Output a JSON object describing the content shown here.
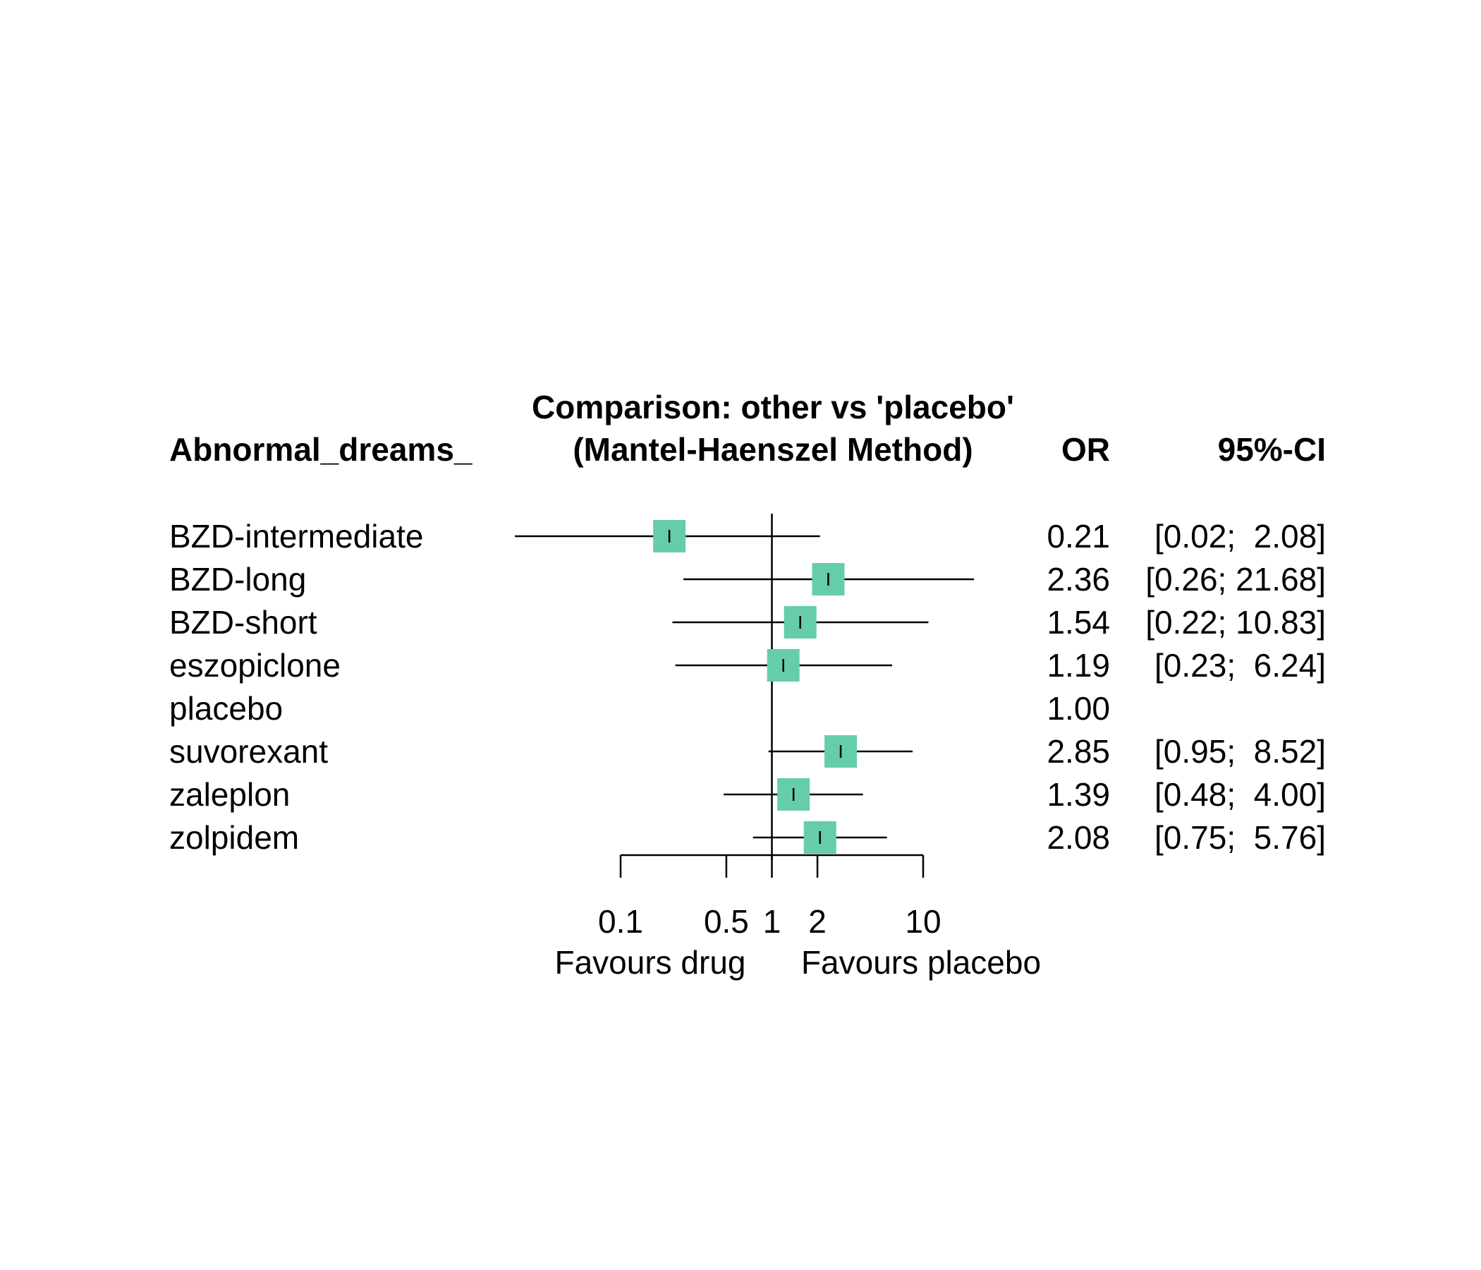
{
  "chart_data": {
    "type": "forest",
    "title": "Comparison: other vs 'placebo'",
    "subtitle": "(Mantel-Haenszel Method)",
    "outcome_label": "Abnormal_dreams_",
    "or_header": "OR",
    "ci_header": "95%-CI",
    "xscale": "log",
    "xlim": [
      0.1,
      10
    ],
    "ticks": [
      {
        "value": 0.1,
        "label": "0.1"
      },
      {
        "value": 0.5,
        "label": "0.5"
      },
      {
        "value": 1,
        "label": "1"
      },
      {
        "value": 2,
        "label": "2"
      },
      {
        "value": 10,
        "label": "10"
      }
    ],
    "left_favours": "Favours drug",
    "right_favours": "Favours placebo",
    "marker_color": "#66CDAA",
    "rows": [
      {
        "name": "BZD-intermediate",
        "or": 0.21,
        "lower": 0.02,
        "upper": 2.08,
        "or_text": "0.21",
        "ci_text": "[0.02;  2.08]"
      },
      {
        "name": "BZD-long",
        "or": 2.36,
        "lower": 0.26,
        "upper": 21.68,
        "or_text": "2.36",
        "ci_text": "[0.26; 21.68]"
      },
      {
        "name": "BZD-short",
        "or": 1.54,
        "lower": 0.22,
        "upper": 10.83,
        "or_text": "1.54",
        "ci_text": "[0.22; 10.83]"
      },
      {
        "name": "eszopiclone",
        "or": 1.19,
        "lower": 0.23,
        "upper": 6.24,
        "or_text": "1.19",
        "ci_text": "[0.23;  6.24]"
      },
      {
        "name": "placebo",
        "or": 1.0,
        "lower": null,
        "upper": null,
        "or_text": "1.00",
        "ci_text": ""
      },
      {
        "name": "suvorexant",
        "or": 2.85,
        "lower": 0.95,
        "upper": 8.52,
        "or_text": "2.85",
        "ci_text": "[0.95;  8.52]"
      },
      {
        "name": "zaleplon",
        "or": 1.39,
        "lower": 0.48,
        "upper": 4.0,
        "or_text": "1.39",
        "ci_text": "[0.48;  4.00]"
      },
      {
        "name": "zolpidem",
        "or": 2.08,
        "lower": 0.75,
        "upper": 5.76,
        "or_text": "2.08",
        "ci_text": "[0.75;  5.76]"
      }
    ]
  }
}
